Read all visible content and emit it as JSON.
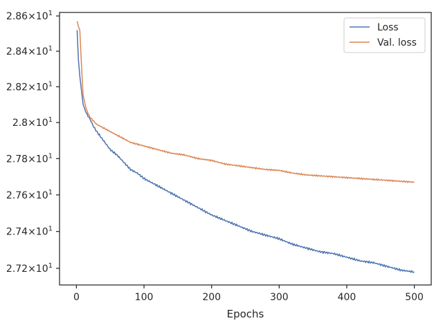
{
  "chart_data": {
    "type": "line",
    "xlabel": "Epochs",
    "ylabel": "",
    "xlim": [
      -25,
      525
    ],
    "ylim": [
      27.11,
      28.62
    ],
    "y_scale": "log",
    "grid": false,
    "legend_position": "top-right",
    "x_ticks": [
      0,
      100,
      200,
      300,
      400,
      500
    ],
    "x_tick_labels": [
      "0",
      "100",
      "200",
      "300",
      "400",
      "500"
    ],
    "y_ticks": [
      27.2,
      27.4,
      27.6,
      27.8,
      28.0,
      28.2,
      28.4,
      28.6
    ],
    "y_tick_labels": [
      {
        "mantissa": "2.72",
        "base": "10",
        "exp": "1"
      },
      {
        "mantissa": "2.74",
        "base": "10",
        "exp": "1"
      },
      {
        "mantissa": "2.76",
        "base": "10",
        "exp": "1"
      },
      {
        "mantissa": "2.78",
        "base": "10",
        "exp": "1"
      },
      {
        "mantissa": "2.8",
        "base": "10",
        "exp": "1"
      },
      {
        "mantissa": "2.82",
        "base": "10",
        "exp": "1"
      },
      {
        "mantissa": "2.84",
        "base": "10",
        "exp": "1"
      },
      {
        "mantissa": "2.86",
        "base": "10",
        "exp": "1"
      }
    ],
    "series": [
      {
        "name": "Loss",
        "color": "#4c72b0",
        "x": [
          1,
          3,
          5,
          8,
          10,
          15,
          20,
          25,
          30,
          40,
          50,
          60,
          70,
          80,
          90,
          100,
          120,
          140,
          160,
          180,
          200,
          220,
          240,
          260,
          280,
          300,
          320,
          340,
          360,
          380,
          400,
          420,
          440,
          460,
          480,
          500
        ],
        "y": [
          28.52,
          28.35,
          28.26,
          28.16,
          28.1,
          28.05,
          28.02,
          27.98,
          27.95,
          27.9,
          27.85,
          27.82,
          27.78,
          27.74,
          27.72,
          27.69,
          27.65,
          27.61,
          27.57,
          27.53,
          27.49,
          27.46,
          27.43,
          27.4,
          27.38,
          27.36,
          27.33,
          27.31,
          27.29,
          27.28,
          27.26,
          27.24,
          27.23,
          27.21,
          27.19,
          27.18
        ]
      },
      {
        "name": "Val. loss",
        "color": "#dd8452",
        "x": [
          1,
          3,
          5,
          8,
          10,
          15,
          20,
          25,
          30,
          40,
          50,
          60,
          70,
          80,
          90,
          100,
          120,
          140,
          160,
          180,
          200,
          220,
          240,
          260,
          280,
          300,
          320,
          340,
          360,
          380,
          400,
          420,
          440,
          460,
          480,
          500
        ],
        "y": [
          28.57,
          28.54,
          28.52,
          28.28,
          28.15,
          28.07,
          28.03,
          28.01,
          27.99,
          27.97,
          27.95,
          27.93,
          27.91,
          27.89,
          27.88,
          27.87,
          27.85,
          27.83,
          27.82,
          27.8,
          27.79,
          27.77,
          27.76,
          27.75,
          27.74,
          27.735,
          27.72,
          27.71,
          27.705,
          27.7,
          27.695,
          27.69,
          27.685,
          27.68,
          27.675,
          27.67
        ]
      }
    ]
  }
}
